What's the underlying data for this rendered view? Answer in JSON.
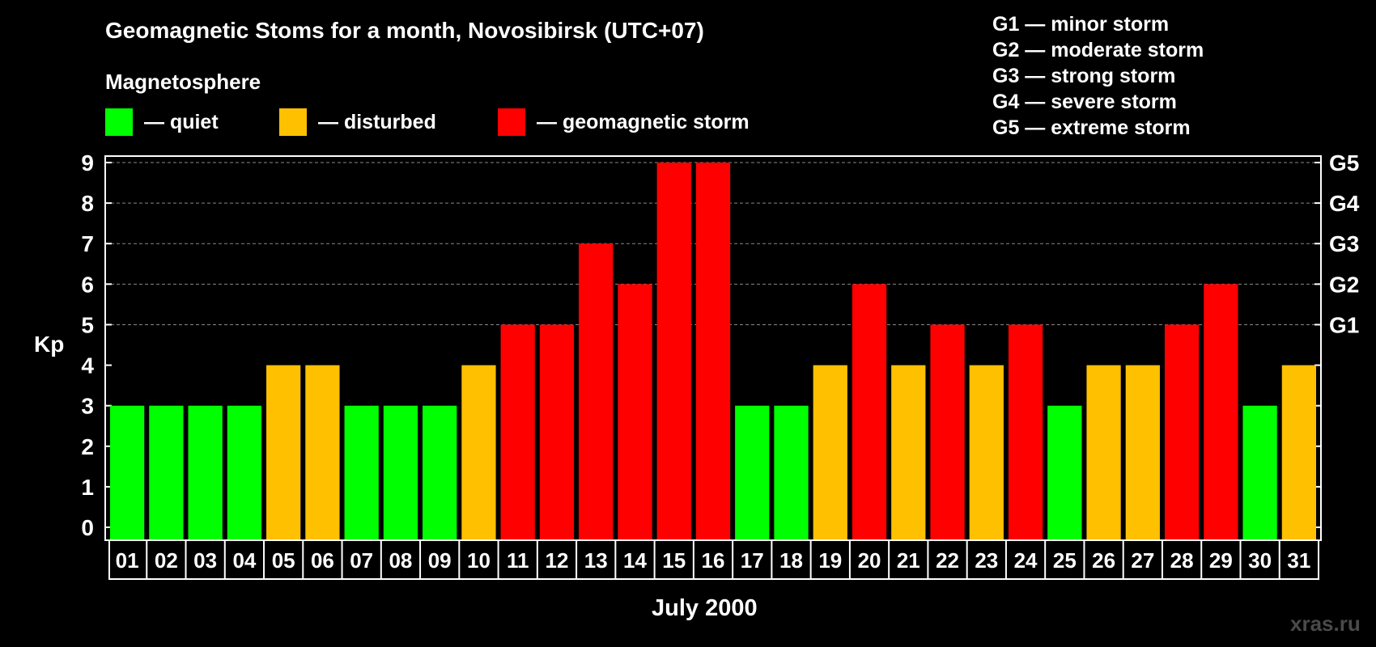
{
  "title": "Geomagnetic Stoms for a month, Novosibirsk (UTC+07)",
  "magnetosphere": {
    "heading": "Magnetosphere",
    "items": [
      {
        "label": "— quiet",
        "color": "#00ff00"
      },
      {
        "label": "— disturbed",
        "color": "#ffc000"
      },
      {
        "label": "— geomagnetic storm",
        "color": "#ff0000"
      }
    ]
  },
  "g_legend": [
    "G1 — minor storm",
    "G2 — moderate storm",
    "G3 — strong storm",
    "G4 — severe storm",
    "G5 — extreme storm"
  ],
  "watermark": "xras.ru",
  "chart_data": {
    "type": "bar",
    "title": "Geomagnetic Stoms for a month, Novosibirsk (UTC+07)",
    "xlabel": "July 2000",
    "ylabel": "Kp",
    "ylim": [
      0,
      9
    ],
    "yticks": [
      0,
      1,
      2,
      3,
      4,
      5,
      6,
      7,
      8,
      9
    ],
    "grid": "dashed horizontal at 5-9",
    "right_axis": [
      {
        "value": 5,
        "label": "G1"
      },
      {
        "value": 6,
        "label": "G2"
      },
      {
        "value": 7,
        "label": "G3"
      },
      {
        "value": 8,
        "label": "G4"
      },
      {
        "value": 9,
        "label": "G5"
      }
    ],
    "categories": [
      "01",
      "02",
      "03",
      "04",
      "05",
      "06",
      "07",
      "08",
      "09",
      "10",
      "11",
      "12",
      "13",
      "14",
      "15",
      "16",
      "17",
      "18",
      "19",
      "20",
      "21",
      "22",
      "23",
      "24",
      "25",
      "26",
      "27",
      "28",
      "29",
      "30",
      "31"
    ],
    "values": [
      3,
      3,
      3,
      3,
      4,
      4,
      3,
      3,
      3,
      4,
      5,
      5,
      7,
      6,
      9,
      9,
      3,
      3,
      4,
      6,
      4,
      5,
      4,
      5,
      3,
      4,
      4,
      5,
      6,
      3,
      4
    ],
    "color_scale": {
      "quiet": "#00ff00",
      "disturbed": "#ffc000",
      "storm": "#ff0000"
    }
  }
}
